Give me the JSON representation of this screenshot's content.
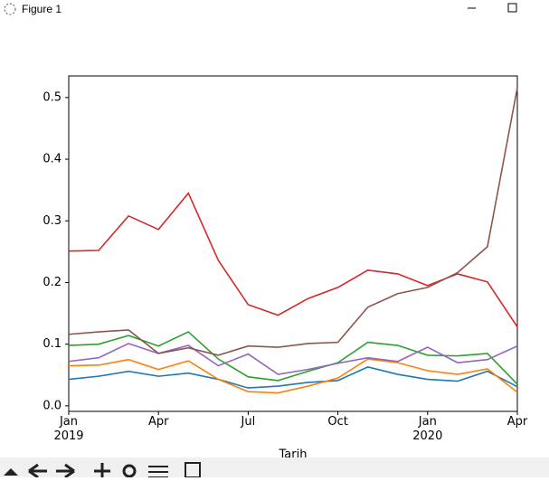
{
  "window": {
    "title": "Figure 1"
  },
  "chart_data": {
    "type": "line",
    "x": [
      "2019-01",
      "2019-02",
      "2019-03",
      "2019-04",
      "2019-05",
      "2019-06",
      "2019-07",
      "2019-08",
      "2019-09",
      "2019-10",
      "2019-11",
      "2019-12",
      "2020-01",
      "2020-02",
      "2020-03",
      "2020-04"
    ],
    "series": [
      {
        "color": "#1f77b4",
        "values": [
          0.043,
          0.048,
          0.056,
          0.048,
          0.053,
          0.043,
          0.029,
          0.032,
          0.038,
          0.041,
          0.063,
          0.051,
          0.043,
          0.04,
          0.056,
          0.031
        ]
      },
      {
        "color": "#ff7f0e",
        "values": [
          0.065,
          0.066,
          0.075,
          0.059,
          0.073,
          0.043,
          0.023,
          0.021,
          0.032,
          0.045,
          0.076,
          0.07,
          0.057,
          0.051,
          0.06,
          0.022
        ]
      },
      {
        "color": "#2ca02c",
        "values": [
          0.098,
          0.1,
          0.114,
          0.097,
          0.12,
          0.076,
          0.047,
          0.041,
          0.056,
          0.07,
          0.103,
          0.098,
          0.082,
          0.081,
          0.085,
          0.035
        ]
      },
      {
        "color": "#d62728",
        "values": [
          0.251,
          0.252,
          0.308,
          0.286,
          0.345,
          0.236,
          0.164,
          0.147,
          0.174,
          0.192,
          0.22,
          0.214,
          0.195,
          0.214,
          0.201,
          0.128
        ]
      },
      {
        "color": "#9467bd",
        "values": [
          0.072,
          0.078,
          0.101,
          0.085,
          0.098,
          0.065,
          0.084,
          0.051,
          0.059,
          0.069,
          0.078,
          0.072,
          0.095,
          0.07,
          0.075,
          0.097
        ]
      },
      {
        "color": "#8c564b",
        "values": [
          0.116,
          0.12,
          0.123,
          0.085,
          0.094,
          0.082,
          0.097,
          0.095,
          0.101,
          0.103,
          0.16,
          0.182,
          0.192,
          0.216,
          0.258,
          0.516
        ]
      }
    ],
    "xlim": [
      "2019-01",
      "2020-04"
    ],
    "xticks": [
      {
        "value": "2019-01",
        "label": "Jan\n2019"
      },
      {
        "value": "2019-04",
        "label": "Apr"
      },
      {
        "value": "2019-07",
        "label": "Jul"
      },
      {
        "value": "2019-10",
        "label": "Oct"
      },
      {
        "value": "2020-01",
        "label": "Jan\n2020"
      },
      {
        "value": "2020-04",
        "label": "Apr"
      }
    ],
    "ylim": [
      -0.009,
      0.535
    ],
    "yticks": [
      {
        "value": 0,
        "label": "0.0"
      },
      {
        "value": 0.1,
        "label": "0.1"
      },
      {
        "value": 0.2,
        "label": "0.2"
      },
      {
        "value": 0.3,
        "label": "0.3"
      },
      {
        "value": 0.4,
        "label": "0.4"
      },
      {
        "value": 0.5,
        "label": "0.5"
      }
    ],
    "xlabel": "Tarih"
  }
}
